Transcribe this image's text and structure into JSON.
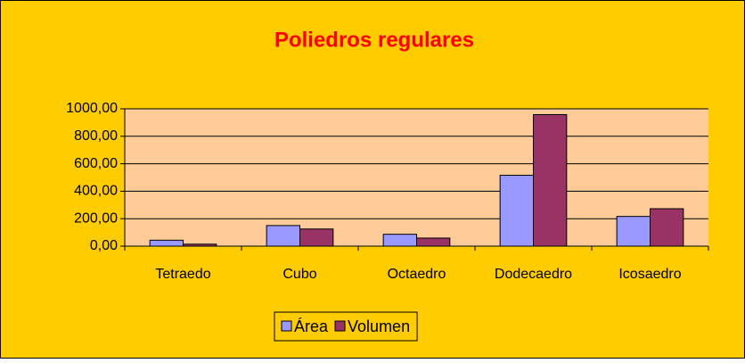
{
  "chart_data": {
    "type": "bar",
    "title": "Poliedros regulares",
    "categories": [
      "Tetraedo",
      "Cubo",
      "Octaedro",
      "Dodecaedro",
      "Icosaedro"
    ],
    "series": [
      {
        "name": "Área",
        "color": "#9999ff",
        "values": [
          43.3,
          150,
          86.6,
          516.2,
          216.5
        ]
      },
      {
        "name": "Volumen",
        "color": "#993366",
        "values": [
          14.7,
          125,
          58.9,
          957.9,
          272.7
        ]
      }
    ],
    "ylim": [
      0,
      1000
    ],
    "yticks": [
      {
        "value": 0,
        "label": "0,00"
      },
      {
        "value": 200,
        "label": "200,00"
      },
      {
        "value": 400,
        "label": "400,00"
      },
      {
        "value": 600,
        "label": "600,00"
      },
      {
        "value": 800,
        "label": "800,00"
      },
      {
        "value": 1000,
        "label": "1000,00"
      }
    ],
    "grid": true,
    "legend": "bottom"
  }
}
